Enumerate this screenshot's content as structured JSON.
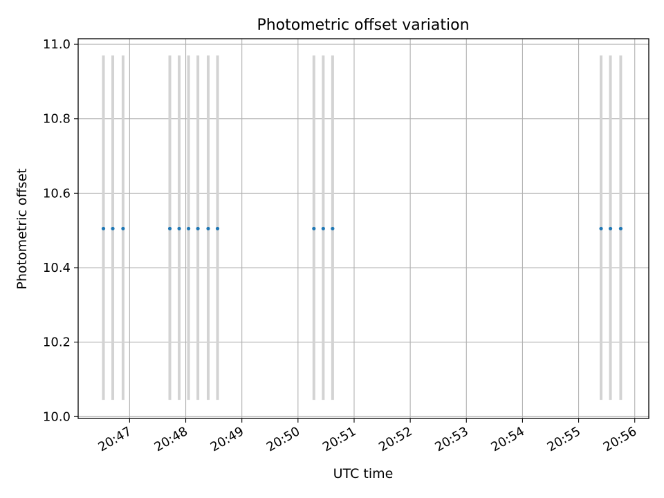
{
  "chart_data": {
    "type": "scatter",
    "title": "Photometric offset variation",
    "xlabel": "UTC time",
    "ylabel": "Photometric offset",
    "xlim": [
      "20:46:05",
      "20:56:15"
    ],
    "ylim": [
      9.995,
      11.015
    ],
    "grid": true,
    "x_ticks": [
      "20:47",
      "20:48",
      "20:49",
      "20:50",
      "20:51",
      "20:52",
      "20:53",
      "20:54",
      "20:55",
      "20:56"
    ],
    "y_ticks": [
      "10.0",
      "10.2",
      "10.4",
      "10.6",
      "10.8",
      "11.0"
    ],
    "point_color": "#1f77b4",
    "errorbar_color": "#d3d3d3",
    "points": [
      {
        "x": "20:46:32",
        "y": 10.505,
        "y_low": 10.045,
        "y_high": 10.97
      },
      {
        "x": "20:46:42",
        "y": 10.505,
        "y_low": 10.045,
        "y_high": 10.97
      },
      {
        "x": "20:46:53",
        "y": 10.505,
        "y_low": 10.045,
        "y_high": 10.97
      },
      {
        "x": "20:47:43",
        "y": 10.505,
        "y_low": 10.045,
        "y_high": 10.97
      },
      {
        "x": "20:47:53",
        "y": 10.505,
        "y_low": 10.045,
        "y_high": 10.97
      },
      {
        "x": "20:48:03",
        "y": 10.505,
        "y_low": 10.045,
        "y_high": 10.97
      },
      {
        "x": "20:48:13",
        "y": 10.505,
        "y_low": 10.045,
        "y_high": 10.97
      },
      {
        "x": "20:48:24",
        "y": 10.505,
        "y_low": 10.045,
        "y_high": 10.97
      },
      {
        "x": "20:48:34",
        "y": 10.505,
        "y_low": 10.045,
        "y_high": 10.97
      },
      {
        "x": "20:50:17",
        "y": 10.505,
        "y_low": 10.045,
        "y_high": 10.97
      },
      {
        "x": "20:50:27",
        "y": 10.505,
        "y_low": 10.045,
        "y_high": 10.97
      },
      {
        "x": "20:50:37",
        "y": 10.505,
        "y_low": 10.045,
        "y_high": 10.97
      },
      {
        "x": "20:55:24",
        "y": 10.505,
        "y_low": 10.045,
        "y_high": 10.97
      },
      {
        "x": "20:55:34",
        "y": 10.505,
        "y_low": 10.045,
        "y_high": 10.97
      },
      {
        "x": "20:55:45",
        "y": 10.505,
        "y_low": 10.045,
        "y_high": 10.97
      }
    ]
  }
}
